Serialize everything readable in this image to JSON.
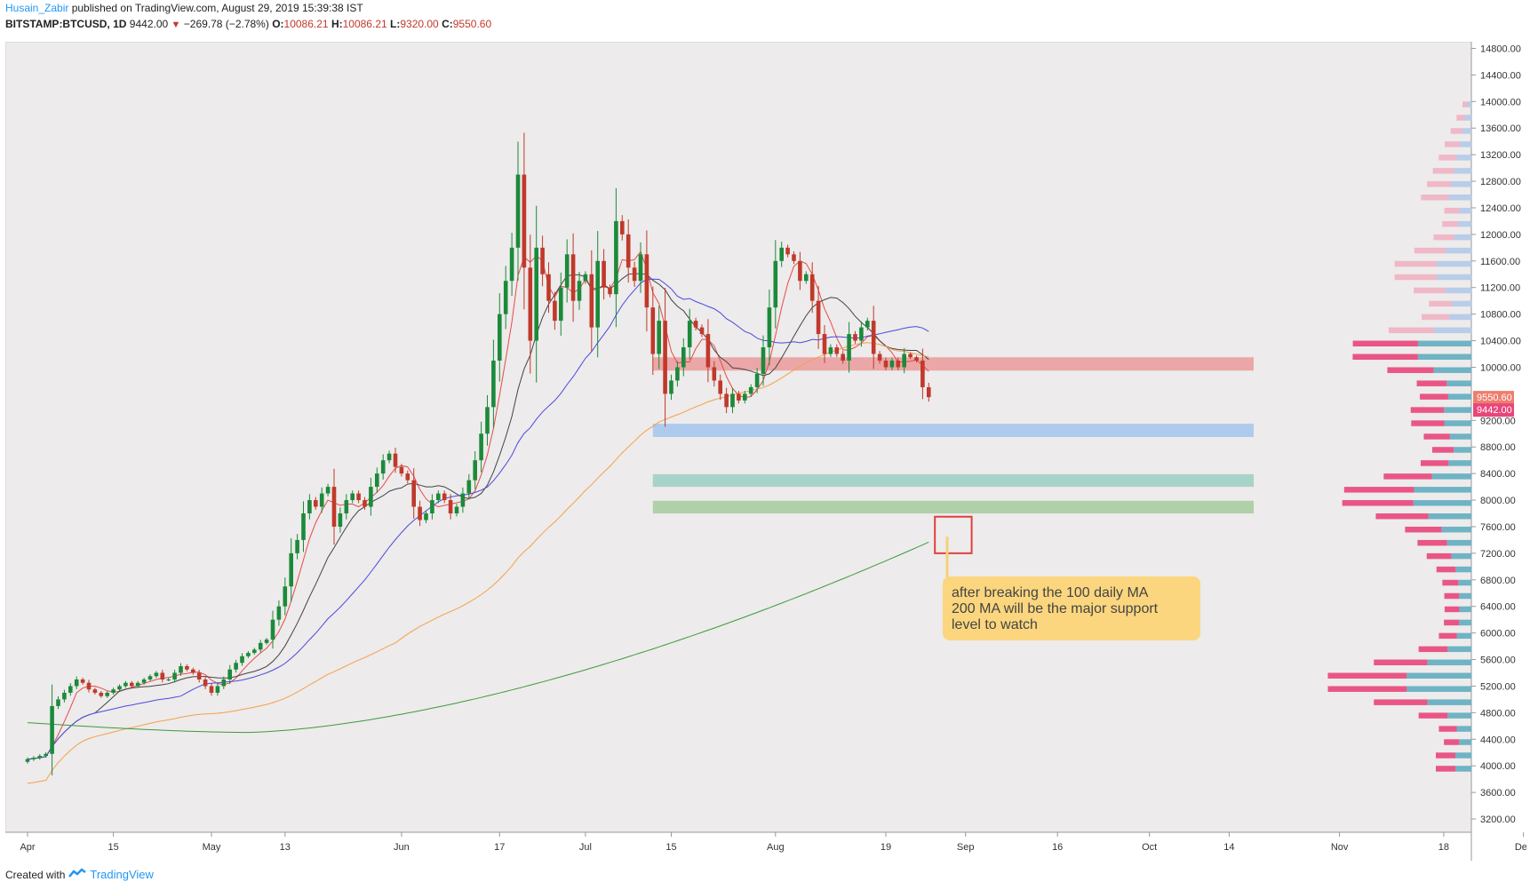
{
  "header": {
    "author": "Husain_Zabir",
    "published": " published on TradingView.com, August 29, 2019 15:39:38 IST",
    "symbol": "BITSTAMP:BTCUSD, 1D",
    "last": "9442.00",
    "change": "−269.78 (−2.78%)",
    "o_label": "O:",
    "o": "10086.21",
    "h_label": "H:",
    "h": "10086.21",
    "l_label": "L:",
    "l": "9320.00",
    "c_label": "C:",
    "c": "9550.60"
  },
  "footer": {
    "created_with": "Created with",
    "brand": "TradingView"
  },
  "annotation": {
    "lines": [
      "after breaking the 100 daily MA",
      "200 MA will be the major support",
      "level to watch"
    ]
  },
  "price_badges": {
    "upper": "9550.60",
    "lower": "9442.00",
    "upper_color": "#ef7d6d",
    "lower_color": "#e8467a"
  },
  "colors": {
    "background": "#edebeb",
    "up": "#1b8a3a",
    "down": "#c0392b",
    "ma_red": "#e84a4a",
    "ma_black": "#444444",
    "ma_blue": "#4a4ae0",
    "ma_orange": "#f5a04a",
    "ma_green": "#3d9a3d"
  },
  "chart_data": {
    "type": "candlestick",
    "y_axis": {
      "min": 3000,
      "max": 14900,
      "ticks": [
        "14800.00",
        "14400.00",
        "14000.00",
        "13600.00",
        "13200.00",
        "12800.00",
        "12400.00",
        "12000.00",
        "11600.00",
        "11200.00",
        "10800.00",
        "10400.00",
        "10000.00",
        "9200.00",
        "8800.00",
        "8400.00",
        "8000.00",
        "7600.00",
        "7200.00",
        "6800.00",
        "6400.00",
        "6000.00",
        "5600.00",
        "5200.00",
        "4800.00",
        "4400.00",
        "4000.00",
        "3600.00",
        "3200.00"
      ]
    },
    "x_axis": {
      "ticks": [
        {
          "label": "Apr",
          "day": 0
        },
        {
          "label": "15",
          "day": 14
        },
        {
          "label": "May",
          "day": 30
        },
        {
          "label": "13",
          "day": 42
        },
        {
          "label": "Jun",
          "day": 61
        },
        {
          "label": "17",
          "day": 77
        },
        {
          "label": "Jul",
          "day": 91
        },
        {
          "label": "15",
          "day": 105
        },
        {
          "label": "Aug",
          "day": 122
        },
        {
          "label": "19",
          "day": 140
        },
        {
          "label": "Sep",
          "day": 153
        },
        {
          "label": "16",
          "day": 168
        },
        {
          "label": "Oct",
          "day": 183
        },
        {
          "label": "14",
          "day": 196
        },
        {
          "label": "Nov",
          "day": 214
        },
        {
          "label": "18",
          "day": 231
        },
        {
          "label": "Dec",
          "day": 244
        }
      ]
    },
    "zones": [
      {
        "from": 9950,
        "to": 10150,
        "color": "#eaa0a0",
        "start_day": 102,
        "end_day": 200
      },
      {
        "from": 8950,
        "to": 9150,
        "color": "#a6c8ee",
        "start_day": 102,
        "end_day": 200
      },
      {
        "from": 8200,
        "to": 8390,
        "color": "#9fd0c6",
        "start_day": 102,
        "end_day": 200
      },
      {
        "from": 7800,
        "to": 7990,
        "color": "#a8cda2",
        "start_day": 102,
        "end_day": 200
      }
    ],
    "highlight_box": {
      "day_from": 148,
      "day_to": 154,
      "price_from": 7200,
      "price_to": 7750
    },
    "closes": [
      4100,
      4120,
      4150,
      4180,
      4900,
      5000,
      5100,
      5200,
      5300,
      5250,
      5150,
      5100,
      5050,
      5100,
      5150,
      5200,
      5250,
      5200,
      5250,
      5300,
      5350,
      5400,
      5300,
      5300,
      5400,
      5500,
      5450,
      5400,
      5300,
      5200,
      5100,
      5200,
      5300,
      5450,
      5550,
      5650,
      5700,
      5750,
      5850,
      5900,
      6200,
      6400,
      6700,
      7200,
      7400,
      7800,
      8000,
      7900,
      8100,
      8200,
      7600,
      7800,
      8000,
      8100,
      8000,
      7900,
      8200,
      8400,
      8600,
      8700,
      8500,
      8400,
      8300,
      7900,
      7700,
      7800,
      8000,
      8100,
      8000,
      7800,
      7900,
      8100,
      8300,
      8600,
      9000,
      9400,
      10100,
      10800,
      11300,
      11800,
      12900,
      11500,
      10400,
      11800,
      11400,
      11000,
      10700,
      11200,
      11700,
      11000,
      11300,
      11400,
      10600,
      11600,
      11200,
      11100,
      12200,
      12000,
      11500,
      11300,
      11700,
      10900,
      10200,
      10700,
      9600,
      9800,
      10000,
      10300,
      10700,
      10600,
      10500,
      10000,
      9800,
      9600,
      9400,
      9600,
      9500,
      9600,
      9700,
      9900,
      10300,
      10900,
      11600,
      11800,
      11700,
      11600,
      11300,
      11400,
      11000,
      10500,
      10200,
      10300,
      10200,
      10100,
      10500,
      10400,
      10600,
      10700,
      10200,
      10100,
      10000,
      10100,
      10000,
      10200,
      10150,
      10100,
      9700,
      9550
    ]
  }
}
